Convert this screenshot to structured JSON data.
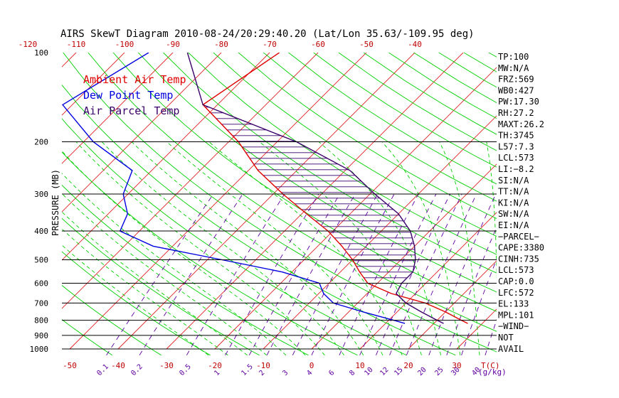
{
  "chart_data": {
    "type": "line",
    "title": "AIRS SkewT Diagram 2010-08-24/20:29:40.20 (Lat/Lon 35.63/-109.95 deg)",
    "ylabel": "PRESSURE (MB)",
    "bottom_axis_unit": "T(C)",
    "mixing_ratio_unit": "(g/kg)",
    "y_scale": "log",
    "ylim": [
      1000,
      100
    ],
    "xlim_bottom": [
      -50,
      40
    ],
    "y_ticks": [
      "100",
      "200",
      "300",
      "400",
      "500",
      "600",
      "700",
      "800",
      "900",
      "1000"
    ],
    "y_tick_values": [
      100,
      200,
      300,
      400,
      500,
      600,
      700,
      800,
      900,
      1000
    ],
    "top_ticks": [
      "-120",
      "-110",
      "-100",
      "-90",
      "-80",
      "-70",
      "-60",
      "-50",
      "-40"
    ],
    "bottom_ticks": [
      "-50",
      "-40",
      "-30",
      "-20",
      "-10",
      "0",
      "10",
      "20",
      "30"
    ],
    "mixing_ratio_labels": [
      "0.1",
      "0.2",
      "0.5",
      "1",
      "1.5",
      "2",
      "3",
      "4",
      "6",
      "8",
      "10",
      "12",
      "15",
      "20",
      "25",
      "30",
      "40"
    ],
    "legend": [
      "Ambient Air Temp",
      "Dew Point Temp",
      "Air Parcel Temp"
    ],
    "colors": {
      "ambient": "#e00000",
      "dewpoint": "#0000e0",
      "parcel": "#3a006a",
      "isotherms": "#e02020",
      "dry_adiabats": "#00d000",
      "moist_adiabats": "#00d000",
      "mixing_ratio": "#6000a0",
      "isobars": "#000000",
      "text": "#000000"
    },
    "series": [
      {
        "name": "Ambient Air Temp",
        "pressure": [
          100,
          150,
          200,
          250,
          300,
          350,
          400,
          450,
          500,
          550,
          600,
          650,
          700,
          750,
          800,
          820
        ],
        "temperature": [
          -68,
          -73,
          -58,
          -48,
          -38,
          -29,
          -21,
          -15,
          -10,
          -6,
          -2,
          5,
          14,
          20,
          25,
          27
        ]
      },
      {
        "name": "Dew Point Temp",
        "pressure": [
          100,
          150,
          200,
          250,
          300,
          350,
          400,
          450,
          500,
          550,
          600,
          650,
          700,
          750,
          800,
          820
        ],
        "temperature": [
          -95,
          -102,
          -88,
          -74,
          -71,
          -66,
          -64,
          -54,
          -37,
          -22,
          -12,
          -9,
          -5,
          3,
          11,
          14
        ]
      },
      {
        "name": "Air Parcel Temp",
        "pressure": [
          100,
          150,
          200,
          250,
          300,
          350,
          400,
          450,
          500,
          550,
          600,
          650,
          700,
          750,
          800,
          820
        ],
        "temperature": [
          -87,
          -73,
          -46,
          -29,
          -19,
          -10,
          -4,
          0,
          3,
          5,
          5,
          6,
          10,
          15,
          20,
          22
        ]
      }
    ],
    "stability": {
      "lines": [
        "TP:100",
        "MW:N/A",
        "FRZ:569",
        "WB0:427",
        "PW:17.30",
        "RH:27.2",
        "MAXT:26.2",
        "TH:3745",
        "L57:7.3",
        "LCL:573",
        "LI:−8.2",
        "SI:N/A",
        "TT:N/A",
        "KI:N/A",
        "SW:N/A",
        "EI:N/A",
        "−PARCEL−",
        "CAPE:3380",
        "CINH:735",
        "LCL:573",
        "CAP:0.0",
        "LFC:572",
        "EL:133",
        "MPL:101",
        "−WIND−",
        "NOT",
        "AVAIL"
      ]
    }
  }
}
